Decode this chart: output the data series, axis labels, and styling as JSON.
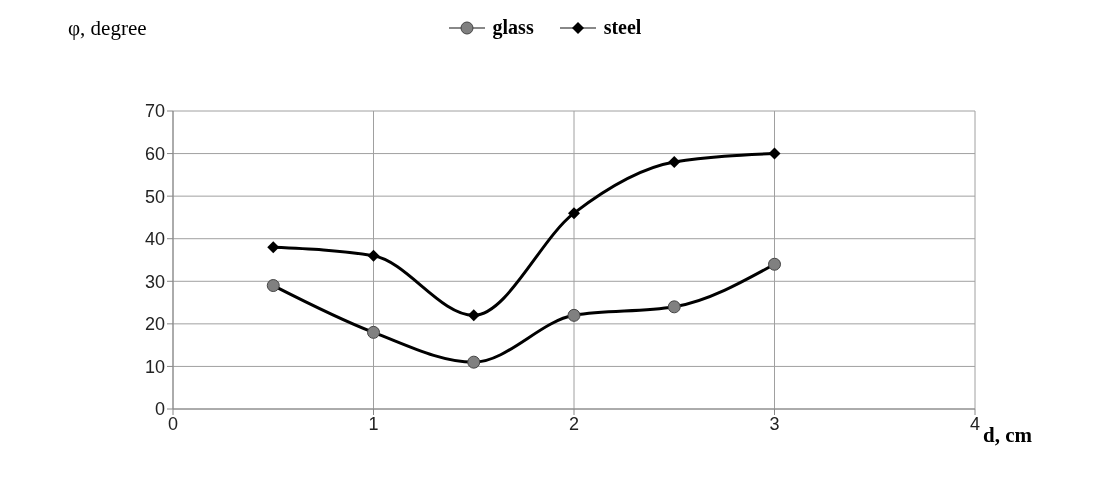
{
  "chart_data": {
    "type": "line",
    "ylabel": "φ, degree",
    "xlabel": "d, cm",
    "x": [
      0.5,
      1,
      1.5,
      2,
      2.5,
      3
    ],
    "series": [
      {
        "name": "glass",
        "color": "#808080",
        "marker": "circle",
        "values": [
          29,
          18,
          11,
          22,
          24,
          34
        ]
      },
      {
        "name": "steel",
        "color": "#000000",
        "marker": "diamond",
        "values": [
          38,
          36,
          22,
          46,
          58,
          60
        ]
      }
    ],
    "xlim": [
      0,
      4
    ],
    "xticks": [
      0,
      1,
      2,
      3,
      4
    ],
    "ylim": [
      0,
      70
    ],
    "yticks": [
      0,
      10,
      20,
      30,
      40,
      50,
      60,
      70
    ],
    "grid": true,
    "legend": "top"
  }
}
